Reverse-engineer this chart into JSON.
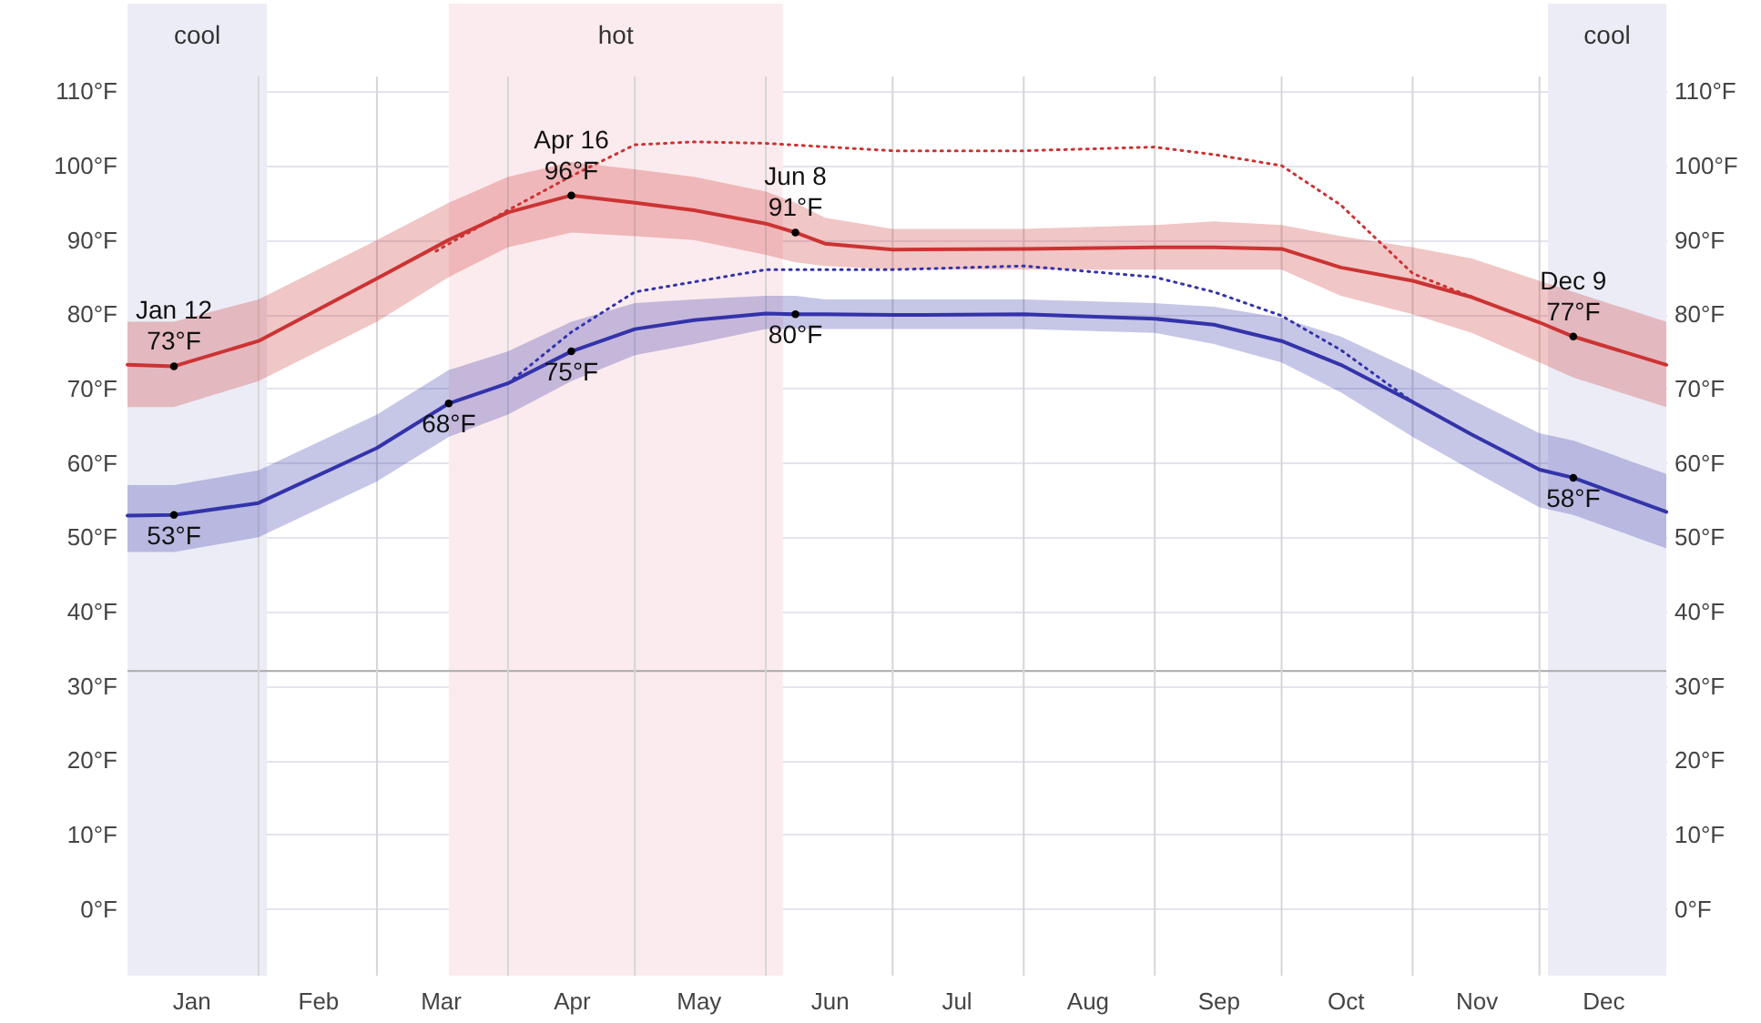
{
  "chart_data": {
    "type": "line",
    "x": [
      "--01-01",
      "--01-12",
      "--02-01",
      "--03-01",
      "--03-18",
      "--04-01",
      "--04-16",
      "--05-01",
      "--05-15",
      "--06-01",
      "--06-08",
      "--06-15",
      "--07-01",
      "--08-01",
      "--09-01",
      "--09-15",
      "--10-01",
      "--10-15",
      "--11-01",
      "--11-15",
      "--12-01",
      "--12-09",
      "--12-31"
    ],
    "series": [
      {
        "color": "#cc3333",
        "values": [
          73.2,
          73,
          76.4,
          84.8,
          90,
          93.7,
          96,
          95,
          94,
          92.2,
          91,
          89.5,
          88.7,
          88.8,
          89,
          89,
          88.8,
          86.3,
          84.5,
          82.3,
          78.9,
          77,
          73.2
        ],
        "lower": [
          67.5,
          67.5,
          71,
          79,
          85,
          89,
          91,
          90.5,
          90,
          88,
          87,
          86.5,
          86,
          86,
          86,
          86,
          86,
          82.5,
          80,
          77.5,
          73.5,
          71.5,
          67.5
        ],
        "upper": [
          79,
          79,
          82,
          90,
          95,
          98.5,
          100.5,
          99.5,
          98.5,
          96.5,
          95,
          93,
          91.5,
          91.5,
          92,
          92.5,
          92,
          90.5,
          89,
          87.5,
          84.5,
          83,
          79
        ]
      },
      {
        "color": "#3333aa",
        "values": [
          52.9,
          53,
          54.6,
          62,
          68,
          70.7,
          75,
          78,
          79.2,
          80.1,
          80,
          80,
          79.9,
          80,
          79.4,
          78.6,
          76.4,
          73.2,
          68.2,
          63.8,
          59.1,
          58,
          53.4
        ],
        "lower": [
          48,
          48,
          50,
          57.5,
          63.5,
          66.5,
          71,
          74.5,
          76,
          78,
          78,
          78,
          78,
          78,
          77.5,
          76,
          73.5,
          69.5,
          63.5,
          59,
          54,
          53,
          48.5
        ],
        "upper": [
          57,
          57,
          59,
          66.5,
          72.5,
          75,
          79,
          81.5,
          82,
          82.5,
          82.5,
          82,
          82,
          82,
          81.5,
          81,
          79.5,
          77,
          72.5,
          68.5,
          64,
          63,
          58.5
        ]
      },
      {
        "color": "#cc3333",
        "line_style": "dotted",
        "x": [
          "--03-15",
          "--04-01",
          "--04-16",
          "--05-01",
          "--05-15",
          "--06-01",
          "--07-01",
          "--08-01",
          "--09-01",
          "--09-15",
          "--10-01",
          "--10-15",
          "--11-01",
          "--11-15"
        ],
        "values": [
          88.5,
          94,
          98.6,
          102.8,
          103.2,
          103,
          102,
          102,
          102.5,
          101.5,
          100,
          94.7,
          85.5,
          82.3
        ]
      },
      {
        "color": "#3333aa",
        "line_style": "dotted",
        "x": [
          "--04-01",
          "--04-16",
          "--05-01",
          "--06-01",
          "--07-01",
          "--08-01",
          "--09-01",
          "--09-15",
          "--10-01",
          "--10-15",
          "--11-01"
        ],
        "values": [
          70.7,
          77.6,
          83,
          86,
          86,
          86.5,
          85,
          83,
          79.8,
          75.2,
          68.2
        ]
      }
    ],
    "xlim": [
      "--01-01",
      "--12-31"
    ],
    "xticks": [
      {
        "value": "--01-16",
        "label": "Jan"
      },
      {
        "value": "--02-01",
        "label": null
      },
      {
        "value": "--02-15",
        "label": "Feb"
      },
      {
        "value": "--03-01",
        "label": null
      },
      {
        "value": "--03-16",
        "label": "Mar"
      },
      {
        "value": "--04-01",
        "label": null
      },
      {
        "value": "--04-16",
        "label": "Apr"
      },
      {
        "value": "--05-01",
        "label": null
      },
      {
        "value": "--05-16",
        "label": "May"
      },
      {
        "value": "--06-01",
        "label": null
      },
      {
        "value": "--06-16",
        "label": "Jun"
      },
      {
        "value": "--07-01",
        "label": null
      },
      {
        "value": "--07-16",
        "label": "Jul"
      },
      {
        "value": "--08-01",
        "label": null
      },
      {
        "value": "--08-16",
        "label": "Aug"
      },
      {
        "value": "--09-01",
        "label": null
      },
      {
        "value": "--09-16",
        "label": "Sep"
      },
      {
        "value": "--10-01",
        "label": null
      },
      {
        "value": "--10-16",
        "label": "Oct"
      },
      {
        "value": "--11-01",
        "label": null
      },
      {
        "value": "--11-16",
        "label": "Nov"
      },
      {
        "value": "--12-01",
        "label": null
      },
      {
        "value": "--12-16",
        "label": "Dec"
      }
    ],
    "ylim": [
      -9,
      112
    ],
    "yticks": [
      {
        "value": 0,
        "label": "0°F"
      },
      {
        "value": 10,
        "label": "10°F"
      },
      {
        "value": 20,
        "label": "20°F"
      },
      {
        "value": 30,
        "label": "30°F"
      },
      {
        "value": 40,
        "label": "40°F"
      },
      {
        "value": 50,
        "label": "50°F"
      },
      {
        "value": 60,
        "label": "60°F"
      },
      {
        "value": 70,
        "label": "70°F"
      },
      {
        "value": 80,
        "label": "80°F"
      },
      {
        "value": 90,
        "label": "90°F"
      },
      {
        "value": 100,
        "label": "100°F"
      },
      {
        "value": 110,
        "label": "110°F"
      }
    ],
    "y2lim": [
      -9,
      112
    ],
    "y2ticks": [
      {
        "value": 0,
        "label": "0°F"
      },
      {
        "value": 10,
        "label": "10°F"
      },
      {
        "value": 20,
        "label": "20°F"
      },
      {
        "value": 30,
        "label": "30°F"
      },
      {
        "value": 40,
        "label": "40°F"
      },
      {
        "value": 50,
        "label": "50°F"
      },
      {
        "value": 60,
        "label": "60°F"
      },
      {
        "value": 70,
        "label": "70°F"
      },
      {
        "value": 80,
        "label": "80°F"
      },
      {
        "value": 90,
        "label": "90°F"
      },
      {
        "value": 100,
        "label": "100°F"
      },
      {
        "value": 110,
        "label": "110°F"
      }
    ],
    "grid": true,
    "bands": [
      {
        "axis": "x",
        "from": "--01-01",
        "to": "--02-03",
        "label": "cool",
        "color": "#ececf6"
      },
      {
        "axis": "x",
        "from": "--03-18",
        "to": "--06-05",
        "label": "hot",
        "color": "#fcebee"
      },
      {
        "axis": "x",
        "from": "--12-03",
        "to": "--12-31",
        "label": "cool",
        "color": "#ececf6"
      }
    ],
    "ref_lines": [
      {
        "axis": "y",
        "value": 32,
        "color": "#aaaaaa"
      }
    ],
    "annotations": [
      {
        "text": "Jan 12\n73°F",
        "x": "--01-12",
        "y": 73
      },
      {
        "text": "53°F",
        "x": "--01-12",
        "y": 53
      },
      {
        "text": "68°F",
        "x": "--03-18",
        "y": 68
      },
      {
        "text": "Apr 16\n96°F",
        "x": "--04-16",
        "y": 96
      },
      {
        "text": "75°F",
        "x": "--04-16",
        "y": 75
      },
      {
        "text": "Jun 8\n91°F",
        "x": "--06-08",
        "y": 91
      },
      {
        "text": "80°F",
        "x": "--06-08",
        "y": 80
      },
      {
        "text": "Dec 9\n77°F",
        "x": "--12-09",
        "y": 77
      },
      {
        "text": "58°F",
        "x": "--12-09",
        "y": 58
      }
    ]
  }
}
